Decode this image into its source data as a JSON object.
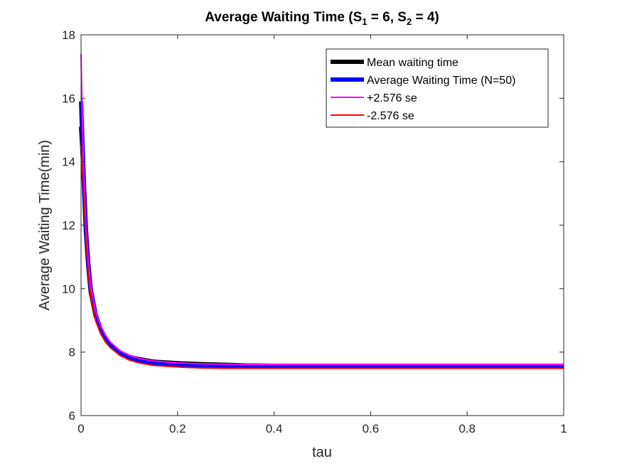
{
  "chart_data": {
    "type": "line",
    "title": "Average Waiting Time (S1 = 6, S2 = 4)",
    "title_parts": {
      "prefix": "Average Waiting Time (S",
      "sub1": "1",
      "mid": " = 6, S",
      "sub2": "2",
      "suffix": " = 4)"
    },
    "xlabel": "tau",
    "ylabel": "Average Waiting Time(min)",
    "xlim": [
      0,
      1
    ],
    "ylim": [
      6,
      18
    ],
    "xticks": [
      "0",
      "0.2",
      "0.4",
      "0.6",
      "0.8",
      "1"
    ],
    "yticks": [
      "6",
      "8",
      "10",
      "12",
      "14",
      "16",
      "18"
    ],
    "grid": false,
    "legend_location": "top-right",
    "series": [
      {
        "name": "Mean waiting time",
        "color": "#000000",
        "style": "thick",
        "x": [
          0.0,
          0.002,
          0.005,
          0.01,
          0.015,
          0.02,
          0.03,
          0.04,
          0.05,
          0.06,
          0.08,
          0.1,
          0.12,
          0.15,
          0.2,
          0.25,
          0.3,
          0.34,
          0.4,
          0.5,
          0.6,
          0.8,
          1.0
        ],
        "y": [
          15.1,
          14.6,
          13.6,
          11.8,
          10.7,
          9.9,
          9.15,
          8.75,
          8.45,
          8.25,
          8.0,
          7.85,
          7.78,
          7.7,
          7.65,
          7.62,
          7.6,
          7.58,
          7.57,
          7.57,
          7.57,
          7.57,
          7.57
        ]
      },
      {
        "name": "Average Waiting Time (N=50)",
        "color": "#0000ff",
        "style": "thick",
        "x": [
          0.0,
          0.002,
          0.005,
          0.01,
          0.015,
          0.02,
          0.03,
          0.04,
          0.05,
          0.06,
          0.08,
          0.1,
          0.12,
          0.15,
          0.2,
          0.25,
          0.3,
          0.4,
          0.5,
          0.6,
          0.8,
          1.0
        ],
        "y": [
          15.9,
          15.0,
          13.7,
          11.9,
          10.8,
          10.0,
          9.2,
          8.75,
          8.45,
          8.25,
          7.98,
          7.83,
          7.74,
          7.66,
          7.6,
          7.57,
          7.56,
          7.55,
          7.55,
          7.55,
          7.55,
          7.55
        ]
      },
      {
        "name": "+2.576 se",
        "color": "#ff00ff",
        "style": "thin",
        "x": [
          0.0,
          0.001,
          0.003,
          0.005,
          0.01,
          0.015,
          0.02,
          0.03,
          0.04,
          0.05,
          0.06,
          0.08,
          0.1,
          0.12,
          0.15,
          0.2,
          0.25,
          0.3,
          0.4,
          0.5,
          0.6,
          0.8,
          1.0
        ],
        "y": [
          17.4,
          16.6,
          15.2,
          13.9,
          12.0,
          10.9,
          10.1,
          9.3,
          8.85,
          8.55,
          8.33,
          8.05,
          7.9,
          7.8,
          7.72,
          7.66,
          7.63,
          7.62,
          7.61,
          7.61,
          7.61,
          7.61,
          7.61
        ]
      },
      {
        "name": "-2.576 se",
        "color": "#ff0000",
        "style": "thin",
        "x": [
          0.0,
          0.002,
          0.005,
          0.01,
          0.015,
          0.02,
          0.03,
          0.04,
          0.05,
          0.06,
          0.08,
          0.1,
          0.12,
          0.15,
          0.2,
          0.25,
          0.3,
          0.4,
          0.5,
          0.6,
          0.8,
          1.0
        ],
        "y": [
          14.5,
          14.0,
          13.3,
          11.6,
          10.5,
          9.75,
          9.0,
          8.6,
          8.33,
          8.15,
          7.9,
          7.75,
          7.66,
          7.58,
          7.53,
          7.5,
          7.49,
          7.49,
          7.49,
          7.49,
          7.49,
          7.49
        ]
      }
    ]
  }
}
